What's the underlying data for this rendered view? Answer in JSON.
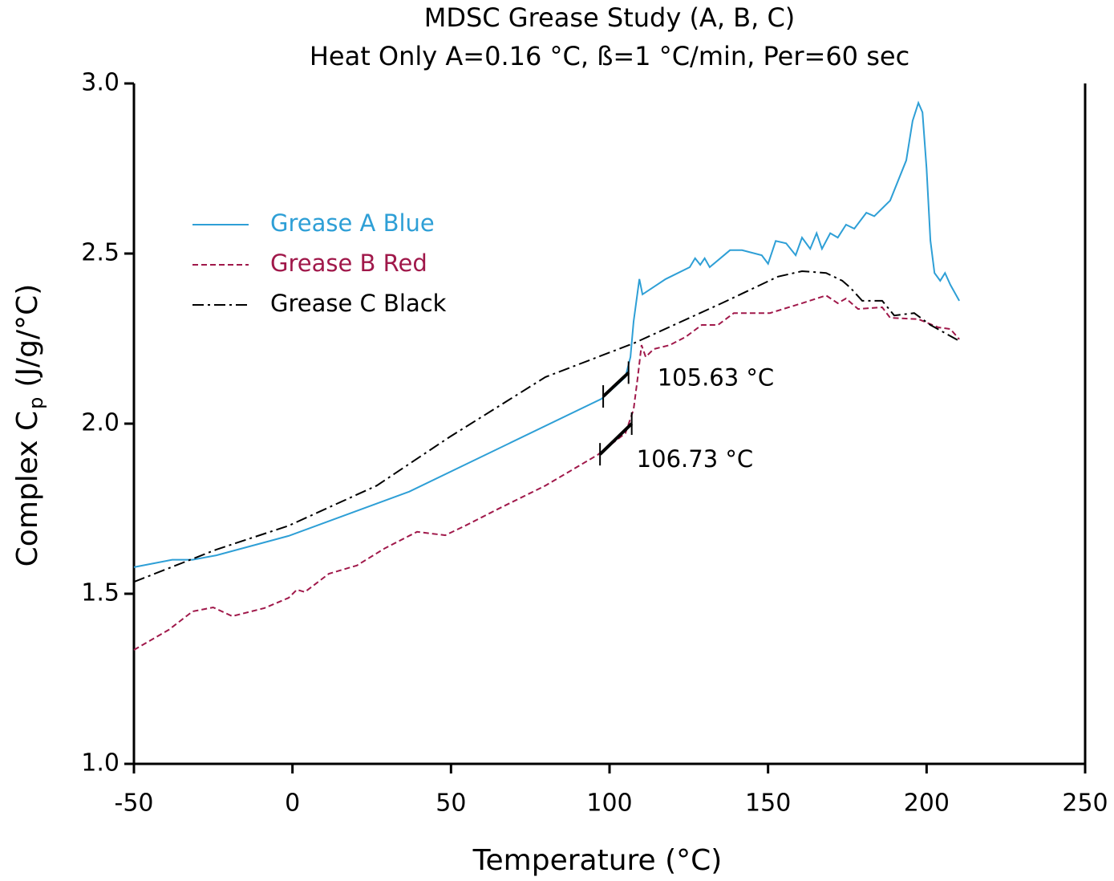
{
  "chart_data": {
    "type": "line",
    "title": [
      "MDSC Grease Study (A, B, C)",
      "Heat Only A=0.16 °C, ß=1 °C/min, Per=60 sec"
    ],
    "x_label": "Temperature (°C)",
    "y_label": [
      "Complex C",
      "p",
      "(J/g/°C)"
    ],
    "xlim": [
      -50,
      250
    ],
    "xticks": [
      -50,
      0,
      50,
      100,
      150,
      200,
      250
    ],
    "ylim": [
      1,
      3
    ],
    "yticks": [
      {
        "value": 1,
        "label": "1.0"
      },
      1.5,
      {
        "value": 2,
        "label": "2.0"
      },
      2.5,
      {
        "value": 3,
        "label": "3.0"
      }
    ],
    "legend": "upper left",
    "series": [
      {
        "name": "Grease A Blue",
        "color": "#2e9fd6",
        "dash": "solid",
        "x": [
          -50,
          -37.9,
          -31.5,
          -24,
          -1.2,
          36.8,
          97.5,
          105,
          106.6,
          107.6,
          109.4,
          110.4,
          117.7,
          125.3,
          127,
          128.6,
          130,
          131.6,
          138,
          141.8,
          148,
          150,
          152.4,
          155.7,
          158.7,
          160.7,
          163.3,
          165.3,
          167,
          169.6,
          172,
          174.6,
          177.2,
          181,
          183.5,
          188.5,
          193.6,
          195.6,
          197.4,
          198.7,
          200,
          201.2,
          202.5,
          204.3,
          205.8,
          207.5,
          210.3
        ],
        "values": [
          1.578,
          1.6,
          1.6,
          1.613,
          1.67,
          1.8,
          2.073,
          2.137,
          2.196,
          2.3,
          2.425,
          2.38,
          2.425,
          2.46,
          2.486,
          2.467,
          2.486,
          2.46,
          2.51,
          2.51,
          2.495,
          2.47,
          2.537,
          2.53,
          2.495,
          2.547,
          2.514,
          2.56,
          2.514,
          2.56,
          2.547,
          2.585,
          2.573,
          2.62,
          2.61,
          2.656,
          2.774,
          2.89,
          2.943,
          2.915,
          2.75,
          2.538,
          2.443,
          2.42,
          2.443,
          2.408,
          2.361
        ]
      },
      {
        "name": "Grease B Red",
        "color": "#a0184a",
        "dash": "dashed",
        "x": [
          -50,
          -39,
          -31.5,
          -25,
          -19,
          -8.8,
          -1.2,
          1.4,
          3.9,
          11.5,
          20.3,
          29.2,
          39.3,
          48.2,
          54.5,
          64.6,
          79.8,
          96.2,
          105,
          107.6,
          108.9,
          110.1,
          111.4,
          113.9,
          119,
          124,
          129.1,
          134.2,
          139.2,
          150.6,
          160.7,
          168.3,
          172,
          174.6,
          178.4,
          186,
          188.5,
          197.4,
          203.7,
          207.5,
          210.3
        ],
        "values": [
          1.335,
          1.394,
          1.448,
          1.46,
          1.434,
          1.458,
          1.488,
          1.512,
          1.505,
          1.559,
          1.583,
          1.634,
          1.682,
          1.672,
          1.7,
          1.748,
          1.818,
          1.908,
          1.972,
          2.042,
          2.137,
          2.231,
          2.196,
          2.219,
          2.231,
          2.255,
          2.29,
          2.29,
          2.325,
          2.325,
          2.354,
          2.377,
          2.354,
          2.368,
          2.337,
          2.342,
          2.311,
          2.307,
          2.283,
          2.278,
          2.248
        ]
      },
      {
        "name": "Grease C Black",
        "color": "#000000",
        "dash": "dashdot",
        "x": [
          -50,
          -24,
          -1.2,
          26.6,
          49.4,
          79.8,
          107.6,
          135.4,
          153.1,
          160.7,
          168.3,
          173.4,
          175.9,
          179.7,
          186,
          189.8,
          196.1,
          201.2,
          210.3
        ],
        "values": [
          1.535,
          1.63,
          1.7,
          1.818,
          1.96,
          2.137,
          2.236,
          2.354,
          2.432,
          2.448,
          2.443,
          2.42,
          2.4,
          2.361,
          2.361,
          2.318,
          2.325,
          2.29,
          2.243
        ]
      }
    ],
    "onset_lines": [
      {
        "text": "105.63 °C",
        "x": [
          98,
          106
        ],
        "values": [
          2.08,
          2.15
        ]
      },
      {
        "text": "106.73 °C",
        "x": [
          97,
          107
        ],
        "values": [
          1.91,
          2.0
        ]
      }
    ]
  }
}
